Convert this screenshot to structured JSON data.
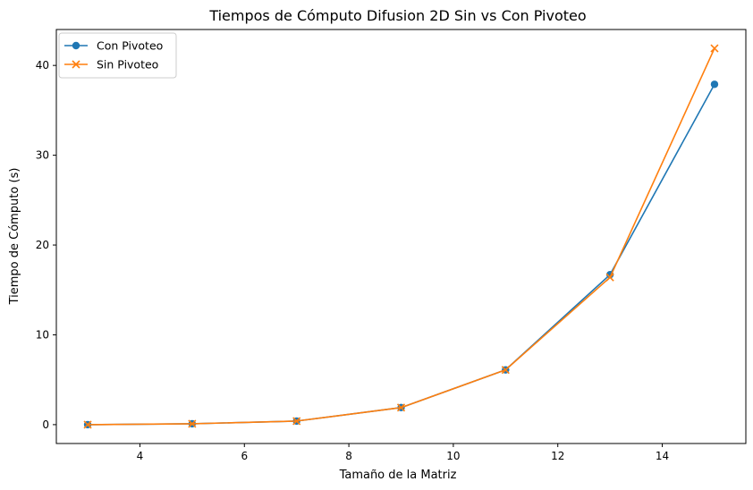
{
  "chart_data": {
    "type": "line",
    "title": "Tiempos de Cómputo Difusion 2D Sin vs Con Pivoteo",
    "xlabel": "Tamaño de la Matriz",
    "ylabel": "Tiempo de Cómputo (s)",
    "xlim": [
      2.4,
      15.6
    ],
    "ylim": [
      -2.1,
      44.0
    ],
    "xticks": [
      4,
      6,
      8,
      10,
      12,
      14
    ],
    "yticks": [
      0,
      10,
      20,
      30,
      40
    ],
    "grid": false,
    "legend_position": "top-left",
    "series": [
      {
        "name": "Con Pivoteo",
        "color": "#1f77b4",
        "marker": "circle",
        "x": [
          3,
          5,
          7,
          9,
          11,
          13,
          15
        ],
        "y": [
          0.0,
          0.1,
          0.4,
          1.9,
          6.1,
          16.7,
          37.9
        ]
      },
      {
        "name": "Sin Pivoteo",
        "color": "#ff7f0e",
        "marker": "x",
        "x": [
          3,
          5,
          7,
          9,
          11,
          13,
          15
        ],
        "y": [
          0.0,
          0.1,
          0.4,
          1.9,
          6.1,
          16.4,
          41.9
        ]
      }
    ]
  }
}
